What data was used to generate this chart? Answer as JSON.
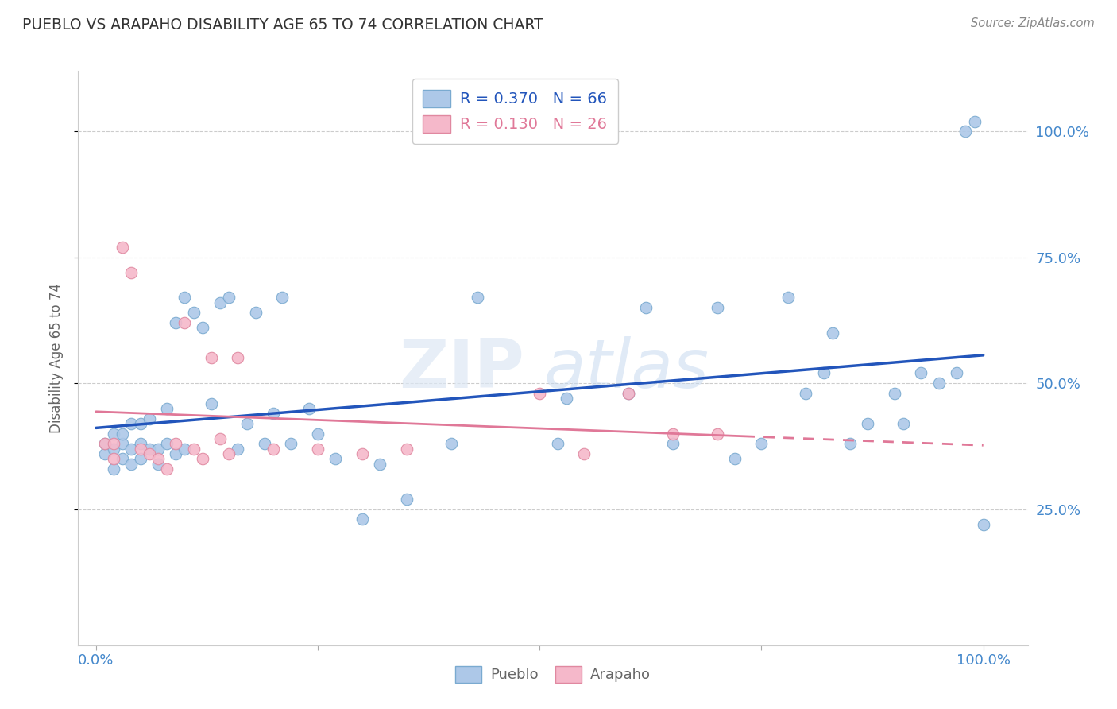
{
  "title": "PUEBLO VS ARAPAHO DISABILITY AGE 65 TO 74 CORRELATION CHART",
  "source": "Source: ZipAtlas.com",
  "ylabel_label": "Disability Age 65 to 74",
  "xlim": [
    -0.02,
    1.05
  ],
  "ylim": [
    -0.02,
    1.12
  ],
  "yticks": [
    0.25,
    0.5,
    0.75,
    1.0
  ],
  "pueblo_color": "#adc8e8",
  "pueblo_edge_color": "#7aaad0",
  "arapaho_color": "#f5b8ca",
  "arapaho_edge_color": "#e088a0",
  "trend_pueblo_color": "#2255bb",
  "trend_arapaho_color": "#e07898",
  "pueblo_R": 0.37,
  "pueblo_N": 66,
  "arapaho_R": 0.13,
  "arapaho_N": 26,
  "pueblo_x": [
    0.01,
    0.01,
    0.02,
    0.02,
    0.02,
    0.03,
    0.03,
    0.03,
    0.04,
    0.04,
    0.04,
    0.05,
    0.05,
    0.05,
    0.06,
    0.06,
    0.07,
    0.07,
    0.08,
    0.08,
    0.09,
    0.09,
    0.1,
    0.1,
    0.11,
    0.12,
    0.13,
    0.14,
    0.15,
    0.16,
    0.17,
    0.18,
    0.19,
    0.2,
    0.21,
    0.22,
    0.24,
    0.25,
    0.27,
    0.3,
    0.32,
    0.35,
    0.4,
    0.43,
    0.52,
    0.53,
    0.6,
    0.62,
    0.65,
    0.7,
    0.72,
    0.75,
    0.78,
    0.8,
    0.82,
    0.83,
    0.85,
    0.87,
    0.9,
    0.91,
    0.93,
    0.95,
    0.97,
    0.98,
    0.99,
    1.0
  ],
  "pueblo_y": [
    0.36,
    0.38,
    0.33,
    0.37,
    0.4,
    0.35,
    0.38,
    0.4,
    0.34,
    0.37,
    0.42,
    0.35,
    0.38,
    0.42,
    0.37,
    0.43,
    0.34,
    0.37,
    0.38,
    0.45,
    0.36,
    0.62,
    0.37,
    0.67,
    0.64,
    0.61,
    0.46,
    0.66,
    0.67,
    0.37,
    0.42,
    0.64,
    0.38,
    0.44,
    0.67,
    0.38,
    0.45,
    0.4,
    0.35,
    0.23,
    0.34,
    0.27,
    0.38,
    0.67,
    0.38,
    0.47,
    0.48,
    0.65,
    0.38,
    0.65,
    0.35,
    0.38,
    0.67,
    0.48,
    0.52,
    0.6,
    0.38,
    0.42,
    0.48,
    0.42,
    0.52,
    0.5,
    0.52,
    1.0,
    1.02,
    0.22
  ],
  "arapaho_x": [
    0.01,
    0.02,
    0.02,
    0.03,
    0.04,
    0.05,
    0.06,
    0.07,
    0.08,
    0.09,
    0.1,
    0.11,
    0.12,
    0.13,
    0.14,
    0.15,
    0.16,
    0.2,
    0.25,
    0.3,
    0.35,
    0.5,
    0.55,
    0.6,
    0.65,
    0.7
  ],
  "arapaho_y": [
    0.38,
    0.35,
    0.38,
    0.77,
    0.72,
    0.37,
    0.36,
    0.35,
    0.33,
    0.38,
    0.62,
    0.37,
    0.35,
    0.55,
    0.39,
    0.36,
    0.55,
    0.37,
    0.37,
    0.36,
    0.37,
    0.48,
    0.36,
    0.48,
    0.4,
    0.4
  ],
  "background_color": "#ffffff",
  "grid_color": "#cccccc",
  "legend_text_color": "#2255bb",
  "legend_label_blue": "R = 0.370   N = 66",
  "legend_label_pink": "R = 0.130   N = 26"
}
